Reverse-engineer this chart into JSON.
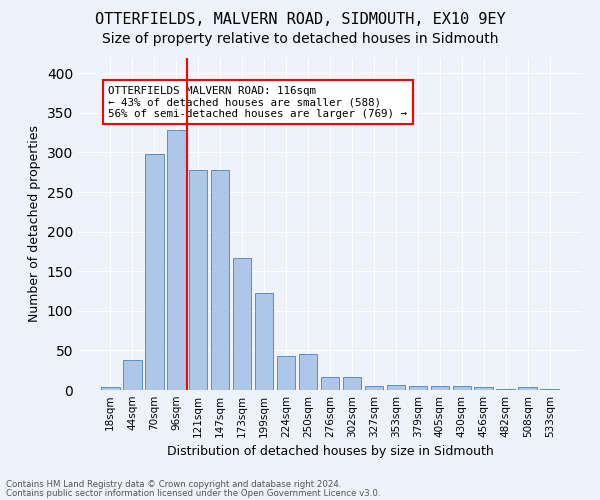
{
  "title": "OTTERFIELDS, MALVERN ROAD, SIDMOUTH, EX10 9EY",
  "subtitle": "Size of property relative to detached houses in Sidmouth",
  "xlabel": "Distribution of detached houses by size in Sidmouth",
  "ylabel": "Number of detached properties",
  "categories": [
    "18sqm",
    "44sqm",
    "70sqm",
    "96sqm",
    "121sqm",
    "147sqm",
    "173sqm",
    "199sqm",
    "224sqm",
    "250sqm",
    "276sqm",
    "302sqm",
    "327sqm",
    "353sqm",
    "379sqm",
    "405sqm",
    "430sqm",
    "456sqm",
    "482sqm",
    "508sqm",
    "533sqm"
  ],
  "values": [
    4,
    38,
    298,
    328,
    278,
    278,
    167,
    122,
    43,
    46,
    16,
    16,
    5,
    6,
    5,
    5,
    5,
    4,
    1,
    4,
    1
  ],
  "bar_color": "#aec6e8",
  "bar_edge_color": "#5a8fc0",
  "red_line_x": 3.5,
  "annotation_title": "OTTERFIELDS MALVERN ROAD: 116sqm",
  "annotation_line1": "← 43% of detached houses are smaller (588)",
  "annotation_line2": "56% of semi-detached houses are larger (769) →",
  "footnote1": "Contains HM Land Registry data © Crown copyright and database right 2024.",
  "footnote2": "Contains public sector information licensed under the Open Government Licence v3.0.",
  "ylim": [
    0,
    420
  ],
  "bg_color": "#eef2fb",
  "grid_color": "#ffffff",
  "title_fontsize": 11,
  "subtitle_fontsize": 10
}
